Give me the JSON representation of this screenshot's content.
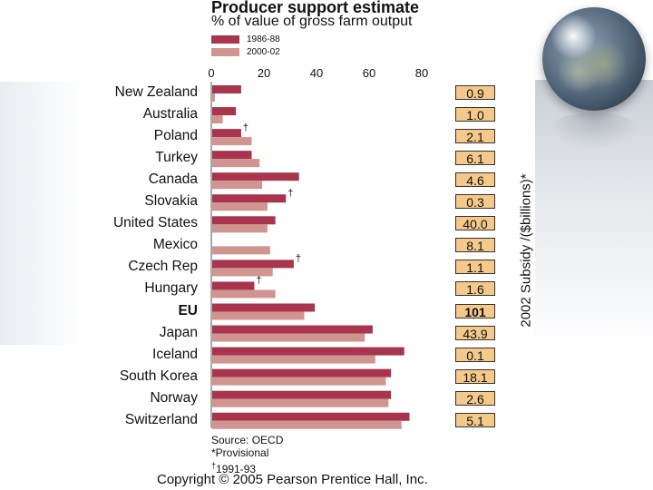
{
  "chart_data": {
    "type": "bar",
    "title": "Producer support estimate",
    "subtitle": "% of value of gross farm output",
    "legend": [
      {
        "name": "1986-88",
        "color": "#a8344e"
      },
      {
        "name": "2000-02",
        "color": "#d09590"
      }
    ],
    "xlim": [
      0,
      80
    ],
    "xticks": [
      0,
      20,
      40,
      60,
      80
    ],
    "categories": [
      "New Zealand",
      "Australia",
      "Poland",
      "Turkey",
      "Canada",
      "Slovakia",
      "United States",
      "Mexico",
      "Czech Rep",
      "Hungary",
      "EU",
      "Japan",
      "Iceland",
      "South Korea",
      "Norway",
      "Switzerland"
    ],
    "bold_categories": [
      "EU"
    ],
    "series": [
      {
        "name": "1986-88",
        "color": "#a8344e",
        "values": [
          11,
          9,
          11,
          15,
          33,
          28,
          24,
          0,
          31,
          16,
          39,
          61,
          73,
          68,
          68,
          75
        ]
      },
      {
        "name": "2000-02",
        "color": "#d09590",
        "values": [
          1,
          4,
          15,
          18,
          19,
          21,
          21,
          22,
          23,
          24,
          35,
          58,
          62,
          66,
          67,
          72
        ]
      }
    ],
    "dagger_marks": [
      "Poland",
      "Slovakia",
      "Czech Rep",
      "Hungary"
    ],
    "dagger_symbol": "†",
    "subsidy_label": "2002 Subsidy /($billions)*",
    "subsidy_values": [
      "0.9",
      "1.0",
      "2.1",
      "6.1",
      "4.6",
      "0.3",
      "40.0",
      "8.1",
      "1.1",
      "1.6",
      "101",
      "43.9",
      "0.1",
      "18.1",
      "2.6",
      "5.1"
    ],
    "grid": false
  },
  "notes": {
    "source": "Source: OECD",
    "provisional": "*Provisional",
    "dagger_note": "1991-93"
  },
  "copyright": "Copyright © 2005 Pearson Prentice Hall, Inc."
}
